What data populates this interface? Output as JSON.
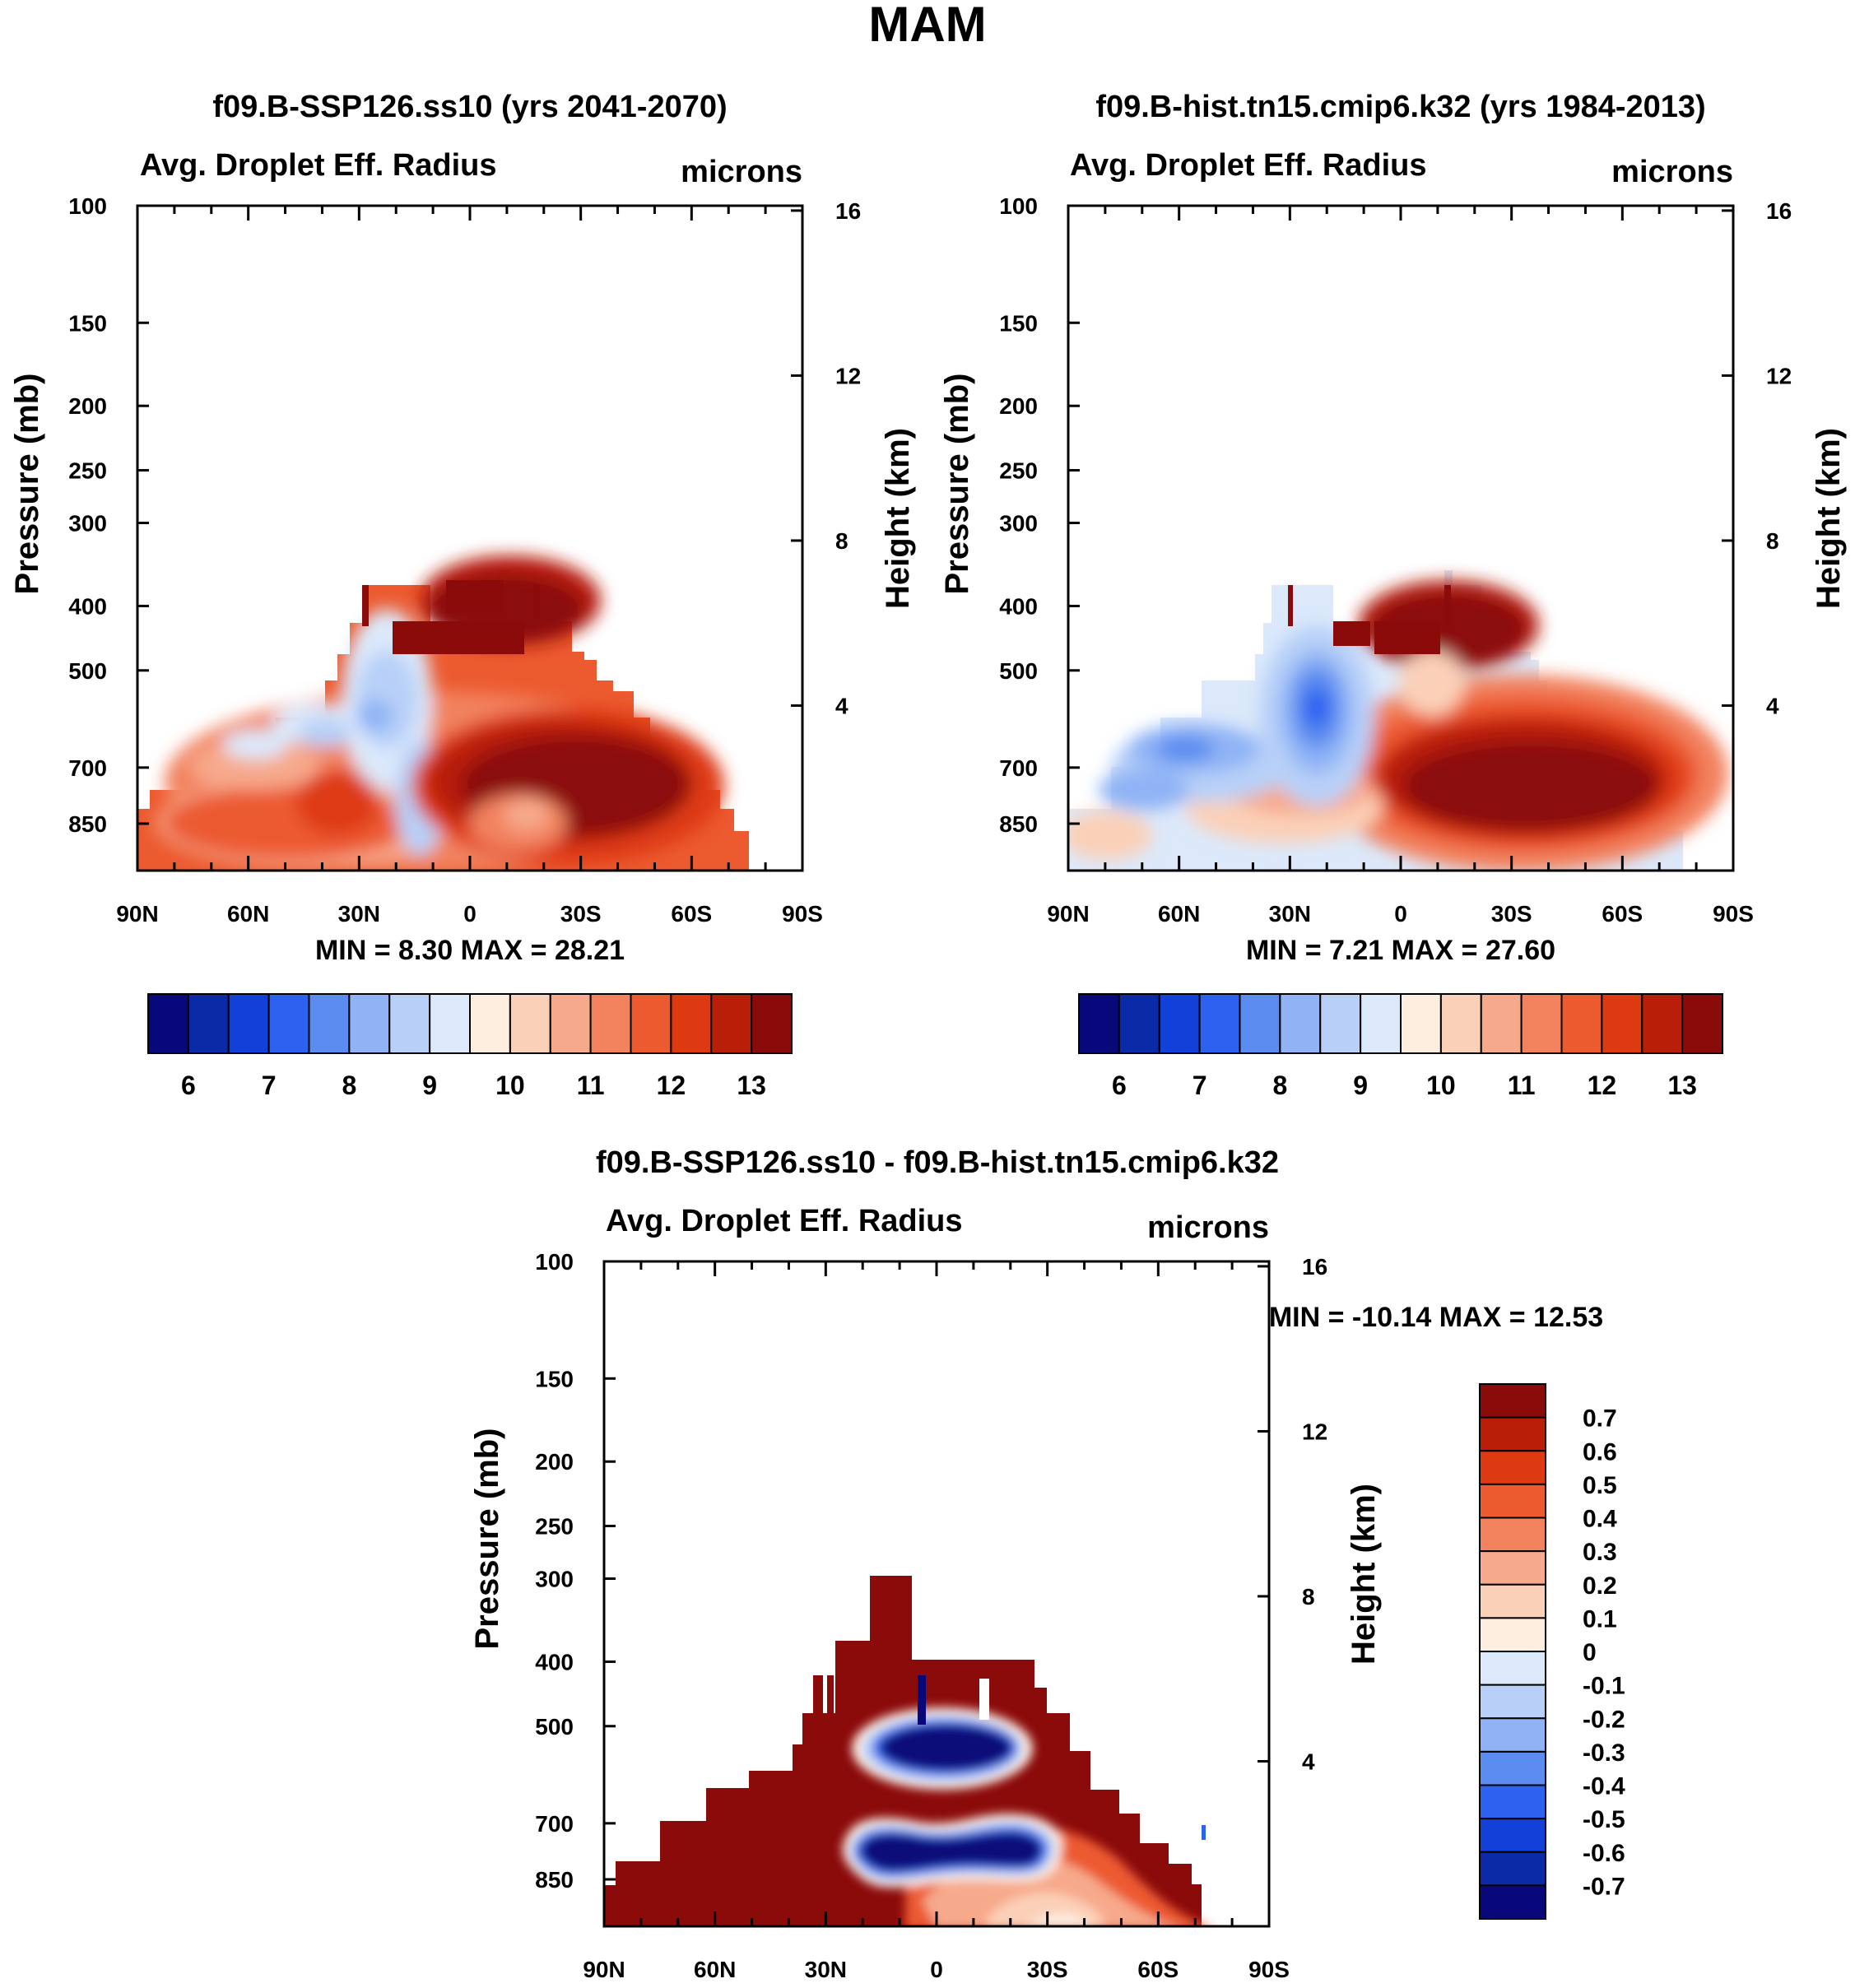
{
  "title": "MAM",
  "axes_common": {
    "ylabel_left": "Pressure (mb)",
    "ylabel_right": "Height (km)",
    "pressure_ticks": [
      100,
      150,
      200,
      250,
      300,
      400,
      500,
      700,
      850
    ],
    "height_ticks": [
      16,
      12,
      8,
      4
    ],
    "lat_ticks": [
      "90N",
      "60N",
      "30N",
      "0",
      "30S",
      "60S",
      "90S"
    ]
  },
  "panels": [
    {
      "id": "ssp126",
      "title": "f09.B-SSP126.ss10 (yrs 2041-2070)",
      "left_string": "Avg. Droplet Eff. Radius",
      "right_string": "microns",
      "stats": "MIN =   8.30  MAX =  28.21"
    },
    {
      "id": "hist",
      "title": "f09.B-hist.tn15.cmip6.k32 (yrs 1984-2013)",
      "left_string": "Avg. Droplet Eff. Radius",
      "right_string": "microns",
      "stats": "MIN =   7.21  MAX =  27.60"
    },
    {
      "id": "diff",
      "title": "f09.B-SSP126.ss10 - f09.B-hist.tn15.cmip6.k32",
      "left_string": "Avg. Droplet Eff. Radius",
      "right_string": "microns",
      "stats": "MIN = -10.14  MAX =  12.53"
    }
  ],
  "colorbar_main": {
    "colors": [
      "#08087a",
      "#0a2aa8",
      "#1240d8",
      "#2d62f0",
      "#5b8cf0",
      "#8fb3f5",
      "#b8d0f8",
      "#dce9fb",
      "#fdeee0",
      "#fbd0b8",
      "#f7a98b",
      "#f2825e",
      "#ec5a30",
      "#de3a12",
      "#b81e08",
      "#8b0a0a"
    ],
    "labels": [
      "6",
      "7",
      "8",
      "9",
      "10",
      "11",
      "12",
      "13"
    ]
  },
  "colorbar_diff": {
    "colors": [
      "#8b0a0a",
      "#b81e08",
      "#de3a12",
      "#ec5a30",
      "#f2825e",
      "#f7a98b",
      "#fbd0b8",
      "#fdeee0",
      "#dce9fb",
      "#b8d0f8",
      "#8fb3f5",
      "#5b8cf0",
      "#2d62f0",
      "#1240d8",
      "#0a2aa8",
      "#08087a"
    ],
    "labels": [
      "0.7",
      "0.6",
      "0.5",
      "0.4",
      "0.3",
      "0.2",
      "0.1",
      "0",
      "-0.1",
      "-0.2",
      "-0.3",
      "-0.4",
      "-0.5",
      "-0.6",
      "-0.7"
    ]
  },
  "chart_data": [
    {
      "type": "heatmap",
      "title": "f09.B-SSP126.ss10 (yrs 2041-2070)",
      "variable": "Avg. Droplet Eff. Radius",
      "units": "microns",
      "xlabel": "",
      "ylabel": "Pressure (mb)",
      "y2label": "Height (km)",
      "x_range": [
        "90N",
        "90S"
      ],
      "y_range_mb": [
        100,
        1000
      ],
      "min": 8.3,
      "max": 28.21,
      "levels": [
        6,
        6.5,
        7,
        7.5,
        8,
        8.5,
        9,
        9.5,
        10,
        10.5,
        11,
        11.5,
        12,
        12.5,
        13
      ],
      "features": [
        "cloud region confined below ~350 mb between ~80N and ~75S",
        "max (>13) around 0-60S near 600-850 mb and 0-20S near 350-450 mb",
        "min (~8-9) near 20N at 500-700 mb"
      ]
    },
    {
      "type": "heatmap",
      "title": "f09.B-hist.tn15.cmip6.k32 (yrs 1984-2013)",
      "variable": "Avg. Droplet Eff. Radius",
      "units": "microns",
      "xlabel": "",
      "ylabel": "Pressure (mb)",
      "y2label": "Height (km)",
      "x_range": [
        "90N",
        "90S"
      ],
      "y_range_mb": [
        100,
        1000
      ],
      "min": 7.21,
      "max": 27.6,
      "levels": [
        6,
        6.5,
        7,
        7.5,
        8,
        8.5,
        9,
        9.5,
        10,
        10.5,
        11,
        11.5,
        12,
        12.5,
        13
      ],
      "features": [
        "low values (7-9) over northern latitudes 10N-80N at 500-750 mb",
        "max (>13) 0-60S near 600-850 mb and 0-20S near 350-450 mb"
      ]
    },
    {
      "type": "heatmap",
      "title": "f09.B-SSP126.ss10 - f09.B-hist.tn15.cmip6.k32",
      "variable": "Avg. Droplet Eff. Radius",
      "units": "microns",
      "xlabel": "",
      "ylabel": "Pressure (mb)",
      "y2label": "Height (km)",
      "x_range": [
        "90N",
        "90S"
      ],
      "y_range_mb": [
        100,
        1000
      ],
      "min": -10.14,
      "max": 12.53,
      "levels": [
        -0.7,
        -0.6,
        -0.5,
        -0.4,
        -0.3,
        -0.2,
        -0.1,
        0,
        0.1,
        0.2,
        0.3,
        0.4,
        0.5,
        0.6,
        0.7
      ],
      "features": [
        "mostly positive (>0.7) across cloud region",
        "strong negative (<-0.7) near 0-20S at 400-500 mb and 20N-30S at 650-750 mb",
        "weak values near 30S-70S below 750 mb"
      ]
    }
  ]
}
